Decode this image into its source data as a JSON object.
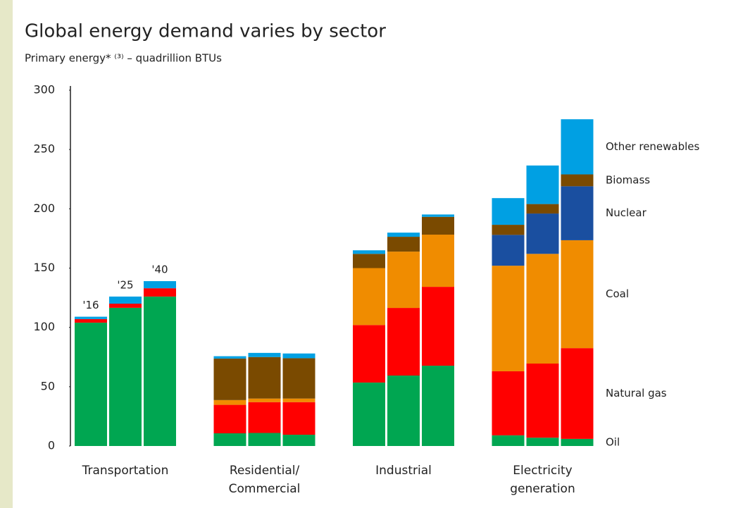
{
  "chart_data": {
    "type": "grouped_stacked_bar",
    "title": "Global energy demand varies by sector",
    "subtitle": "Primary energy* ⁽³⁾ – quadrillion BTUs",
    "groups": [
      "Transportation",
      "Residential/\nCommercial",
      "Industrial",
      "Electricity\ngeneration"
    ],
    "bar_labels": [
      "'16",
      "'25",
      "'40"
    ],
    "ylim": [
      0,
      300
    ],
    "yticks": [
      0,
      50,
      100,
      150,
      200,
      250,
      300
    ],
    "series": [
      {
        "name": "Oil",
        "color": "#00a651",
        "values": [
          104,
          116.5,
          126,
          10.7,
          11,
          9.5,
          53.5,
          59.4,
          67.7,
          9,
          7,
          6
        ]
      },
      {
        "name": "Natural gas",
        "color": "#ff0000",
        "values": [
          3,
          3.5,
          7,
          24,
          26,
          27.5,
          48.5,
          57,
          66.5,
          54,
          62.5,
          76.5
        ]
      },
      {
        "name": "Coal",
        "color": "#f08c00",
        "values": [
          0,
          0,
          0,
          4,
          3,
          3,
          48,
          47.5,
          44,
          89,
          92.5,
          91
        ]
      },
      {
        "name": "Nuclear",
        "color": "#1a4fa0",
        "values": [
          0,
          0,
          0,
          0,
          0,
          0,
          0,
          0,
          0,
          26,
          34,
          45.5
        ]
      },
      {
        "name": "Biomass",
        "color": "#7a4a00",
        "values": [
          0,
          0,
          0,
          35,
          35,
          34,
          12,
          12.5,
          15,
          8.5,
          8,
          10
        ]
      },
      {
        "name": "Other renewables",
        "color": "#00a0e3",
        "values": [
          2,
          6,
          6,
          2,
          3.5,
          4,
          3,
          3.5,
          2,
          22.5,
          32.5,
          46.5
        ]
      }
    ]
  }
}
